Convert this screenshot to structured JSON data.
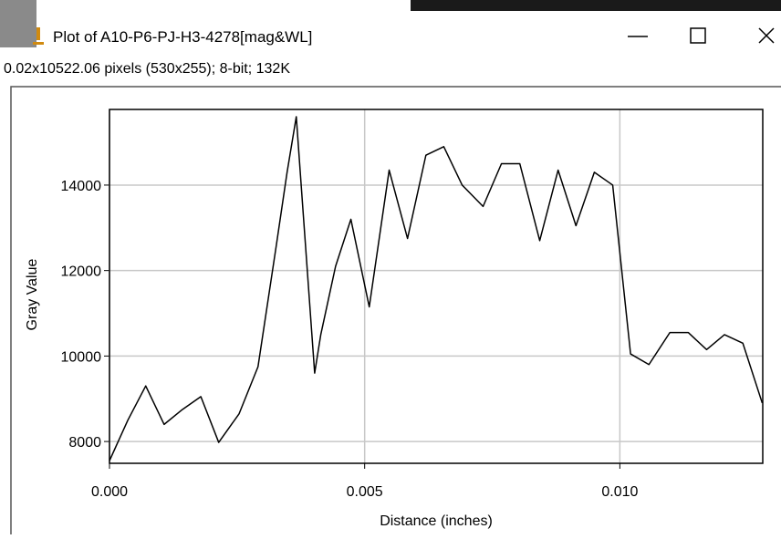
{
  "window": {
    "title": "Plot of A10-P6-PJ-H3-4278[mag&WL]",
    "info": "0.02x10522.06 pixels (530x255); 8-bit; 132K"
  },
  "chart_data": {
    "type": "line",
    "x_label": "Distance (inches)",
    "y_label": "Gray Value",
    "x": [
      0,
      0.00036,
      0.00071,
      0.00107,
      0.00143,
      0.00179,
      0.00214,
      0.00254,
      0.00291,
      0.00327,
      0.00348,
      0.00366,
      0.00402,
      0.00414,
      0.00443,
      0.00473,
      0.00509,
      0.00548,
      0.00584,
      0.0062,
      0.00655,
      0.00691,
      0.00732,
      0.00768,
      0.00804,
      0.00843,
      0.00879,
      0.00914,
      0.0095,
      0.00986,
      0.01021,
      0.01057,
      0.01098,
      0.01134,
      0.0117,
      0.01205,
      0.01241,
      0.01279
    ],
    "values": [
      7550,
      8500,
      9300,
      8400,
      8750,
      9050,
      7980,
      8650,
      9750,
      12600,
      14300,
      15600,
      9600,
      10500,
      12100,
      13200,
      11150,
      14350,
      12750,
      14700,
      14900,
      14000,
      13500,
      14500,
      14500,
      12700,
      14350,
      13050,
      14300,
      14000,
      10050,
      9800,
      10550,
      10550,
      10150,
      10500,
      10300,
      8900
    ],
    "color": "#000000",
    "xlim": [
      0,
      0.0128
    ],
    "ylim": [
      7490,
      15770
    ],
    "xticks": [
      {
        "value": 0,
        "label": "0.000"
      },
      {
        "value": 0.005,
        "label": "0.005"
      },
      {
        "value": 0.01,
        "label": "0.010"
      }
    ],
    "yticks": [
      8000,
      10000,
      12000,
      14000
    ],
    "grid": true
  }
}
